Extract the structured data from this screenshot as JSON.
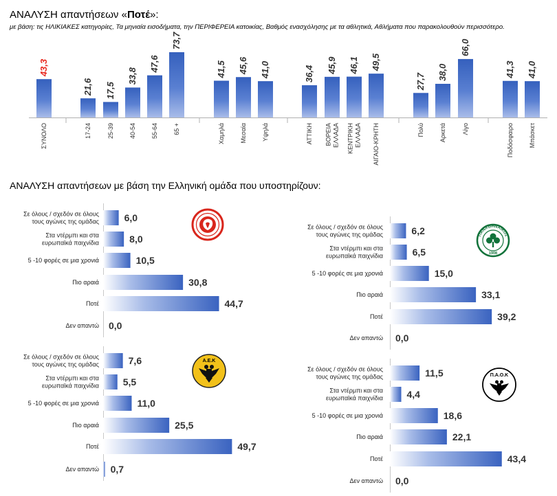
{
  "title": {
    "prefix": "ΑΝΑΛΥΣΗ απαντήσεων «",
    "bold": "Ποτέ",
    "suffix": "»:"
  },
  "subtitle": "με βάση: τις ΗΛΙΚΙΑΚΕΣ κατηγορίες, Τα μηνιαία εισοδήματα, την ΠΕΡΙΦΕΡΕΙΑ κατοικίας, Βαθμός ενασχόλησης με τα αθλητικά, Αθλήματα που παρακολουθούν περισσότερο.",
  "section2_title": "ΑΝΑΛΥΣΗ απαντήσεων με βάση την Ελληνική ομάδα που υποστηρίζουν:",
  "colors": {
    "bar_dark": "#3a63c0",
    "bar_light": "#ffffff",
    "highlight_label": "#e8281e",
    "label": "#333333"
  },
  "chart_data": [
    {
      "type": "bar",
      "title": "ΑΝΑΛΥΣΗ απαντήσεων «Ποτέ»",
      "groups": [
        {
          "categories": [
            "ΣΥΝΟΛΟ"
          ],
          "values": [
            43.3
          ],
          "labels": [
            "43,3"
          ]
        },
        {
          "categories": [
            "17-24",
            "25-39",
            "40-54",
            "55-64",
            "65 +"
          ],
          "values": [
            21.6,
            17.5,
            33.8,
            47.6,
            73.7
          ],
          "labels": [
            "21,6",
            "17,5",
            "33,8",
            "47,6",
            "73,7"
          ]
        },
        {
          "categories": [
            "Χαμηλά",
            "Μεσαία",
            "Υψηλά"
          ],
          "values": [
            41.5,
            45.6,
            41.0
          ],
          "labels": [
            "41,5",
            "45,6",
            "41,0"
          ]
        },
        {
          "categories": [
            "ΑΤΤΙΚΗ",
            "ΒΟΡΕΙΑ ΕΛΛΑΔΑ",
            "ΚΕΝΤΡΙΚΗ ΕΛΛΑΔΑ",
            "ΑΙΓΑΙΟ-ΚΡΗΤΗ"
          ],
          "values": [
            36.4,
            45.9,
            46.1,
            49.5
          ],
          "labels": [
            "36,4",
            "45,9",
            "46,1",
            "49,5"
          ]
        },
        {
          "categories": [
            "Πολύ",
            "Αρκετά",
            "Λίγο"
          ],
          "values": [
            27.7,
            38.0,
            66.0
          ],
          "labels": [
            "27,7",
            "38,0",
            "66,0"
          ]
        },
        {
          "categories": [
            "Ποδόσφαιρο",
            "Μπάσκετ"
          ],
          "values": [
            41.3,
            41.0
          ],
          "labels": [
            "41,3",
            "41,0"
          ]
        }
      ],
      "highlight": "ΣΥΝΟΛΟ",
      "ylim": [
        0,
        80
      ]
    },
    {
      "type": "bar",
      "orientation": "horizontal",
      "team": "Ολυμπιακός",
      "categories": [
        "Σε όλους / σχεδόν σε όλους τους αγώνες της ομάδας",
        "Στα ντέρμπι και στα ευρωπαϊκά παιχνίδια",
        "5 -10 φορές σε μια χρονιά",
        "Πιο αραιά",
        "Ποτέ",
        "Δεν απαντώ"
      ],
      "values": [
        6.0,
        8.0,
        10.5,
        30.8,
        44.7,
        0.0
      ],
      "labels": [
        "6,0",
        "8,0",
        "10,5",
        "30,8",
        "44,7",
        "0,0"
      ]
    },
    {
      "type": "bar",
      "orientation": "horizontal",
      "team": "Παναθηναϊκός",
      "categories": [
        "Σε όλους / σχεδόν σε όλους τους αγώνες της ομάδας",
        "Στα ντέρμπι και στα ευρωπαϊκά παιχνίδια",
        "5 -10 φορές σε μια χρονιά",
        "Πιο αραιά",
        "Ποτέ",
        "Δεν απαντώ"
      ],
      "values": [
        6.2,
        6.5,
        15.0,
        33.1,
        39.2,
        0.0
      ],
      "labels": [
        "6,2",
        "6,5",
        "15,0",
        "33,1",
        "39,2",
        "0,0"
      ]
    },
    {
      "type": "bar",
      "orientation": "horizontal",
      "team": "ΑΕΚ",
      "categories": [
        "Σε όλους / σχεδόν σε όλους τους αγώνες της ομάδας",
        "Στα ντέρμπι και στα ευρωπαϊκά παιχνίδια",
        "5 -10 φορές σε μια χρονιά",
        "Πιο αραιά",
        "Ποτέ",
        "Δεν απαντώ"
      ],
      "values": [
        7.6,
        5.5,
        11.0,
        25.5,
        49.7,
        0.7
      ],
      "labels": [
        "7,6",
        "5,5",
        "11,0",
        "25,5",
        "49,7",
        "0,7"
      ]
    },
    {
      "type": "bar",
      "orientation": "horizontal",
      "team": "ΠΑΟΚ",
      "categories": [
        "Σε όλους / σχεδόν σε όλους τους αγώνες της ομάδας",
        "Στα ντέρμπι και στα ευρωπαϊκά παιχνίδια",
        "5 -10 φορές σε μια χρονιά",
        "Πιο αραιά",
        "Ποτέ",
        "Δεν απαντώ"
      ],
      "values": [
        11.5,
        4.4,
        18.6,
        22.1,
        43.4,
        0.0
      ],
      "labels": [
        "11,5",
        "4,4",
        "18,6",
        "22,1",
        "43,4",
        "0,0"
      ]
    }
  ],
  "logos": {
    "olympiacos": {
      "name": "olympiacos-logo"
    },
    "panathinaikos": {
      "name": "panathinaikos-logo",
      "text": "ΠΑΝΑΘΗΝΑΪΚΟΣ",
      "year": "1908"
    },
    "aek": {
      "name": "aek-logo",
      "text": "Α.Ε.Κ"
    },
    "paok": {
      "name": "paok-logo",
      "text": "Π.Α.Ο.Κ"
    }
  }
}
